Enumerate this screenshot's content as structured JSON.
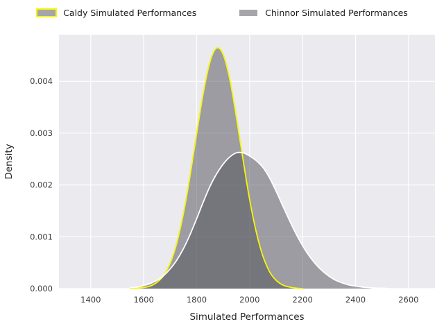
{
  "figure": {
    "background": "#ffffff"
  },
  "chart_data": {
    "type": "area",
    "variant": "kde-density",
    "title": "",
    "xlabel": "Simulated Performances",
    "ylabel": "Density",
    "xlim": [
      1280,
      2700
    ],
    "ylim": [
      0,
      0.0049
    ],
    "x_ticks": [
      1400,
      1600,
      1800,
      2000,
      2200,
      2400,
      2600
    ],
    "y_ticks": [
      0,
      0.001,
      0.002,
      0.003,
      0.004
    ],
    "grid": true,
    "plot_bg": "#eaeaef",
    "grid_color": "#ffffff",
    "legend_position": "top-outside",
    "x": [
      1550,
      1575,
      1600,
      1625,
      1650,
      1675,
      1700,
      1725,
      1750,
      1775,
      1800,
      1825,
      1850,
      1875,
      1900,
      1925,
      1950,
      1975,
      2000,
      2025,
      2050,
      2075,
      2100,
      2125,
      2150,
      2175,
      2200,
      2225,
      2250,
      2275,
      2300,
      2325,
      2350,
      2375,
      2400,
      2425,
      2450,
      2475,
      2500,
      2525,
      2550
    ],
    "series": [
      {
        "name": "Caldy Simulated Performances",
        "fill": "#4e4e55",
        "fill_opacity": 0.5,
        "edge": "#f6f607",
        "edge_width": 1.8,
        "legend_patch_fill": "#a6a6aa",
        "y": [
          0,
          1e-05,
          2e-05,
          5e-05,
          0.00012,
          0.00025,
          0.00049,
          0.00088,
          0.00145,
          0.00217,
          0.00299,
          0.00377,
          0.00437,
          0.00464,
          0.00452,
          0.00404,
          0.00331,
          0.00249,
          0.00172,
          0.00109,
          0.00063,
          0.00033,
          0.00016,
          7e-05,
          3e-05,
          1e-05,
          0,
          0,
          0,
          0,
          0,
          0,
          0,
          0,
          0,
          0,
          0,
          0,
          0,
          0,
          0
        ]
      },
      {
        "name": "Chinnor Simulated Performances",
        "fill": "#4e4e55",
        "fill_opacity": 0.5,
        "edge": "#ffffff",
        "edge_width": 1.8,
        "legend_patch_fill": "#a6a6aa",
        "y": [
          2e-05,
          3e-05,
          6e-05,
          0.0001,
          0.00016,
          0.00025,
          0.00038,
          0.00055,
          0.00077,
          0.00104,
          0.00135,
          0.00167,
          0.00197,
          0.00221,
          0.0024,
          0.00254,
          0.00262,
          0.00262,
          0.00256,
          0.00247,
          0.00234,
          0.00214,
          0.00188,
          0.0016,
          0.00132,
          0.00106,
          0.00083,
          0.00063,
          0.00047,
          0.00034,
          0.00024,
          0.00016,
          0.00011,
          7e-05,
          5e-05,
          3e-05,
          2e-05,
          1e-05,
          1e-05,
          0,
          0
        ]
      }
    ]
  }
}
